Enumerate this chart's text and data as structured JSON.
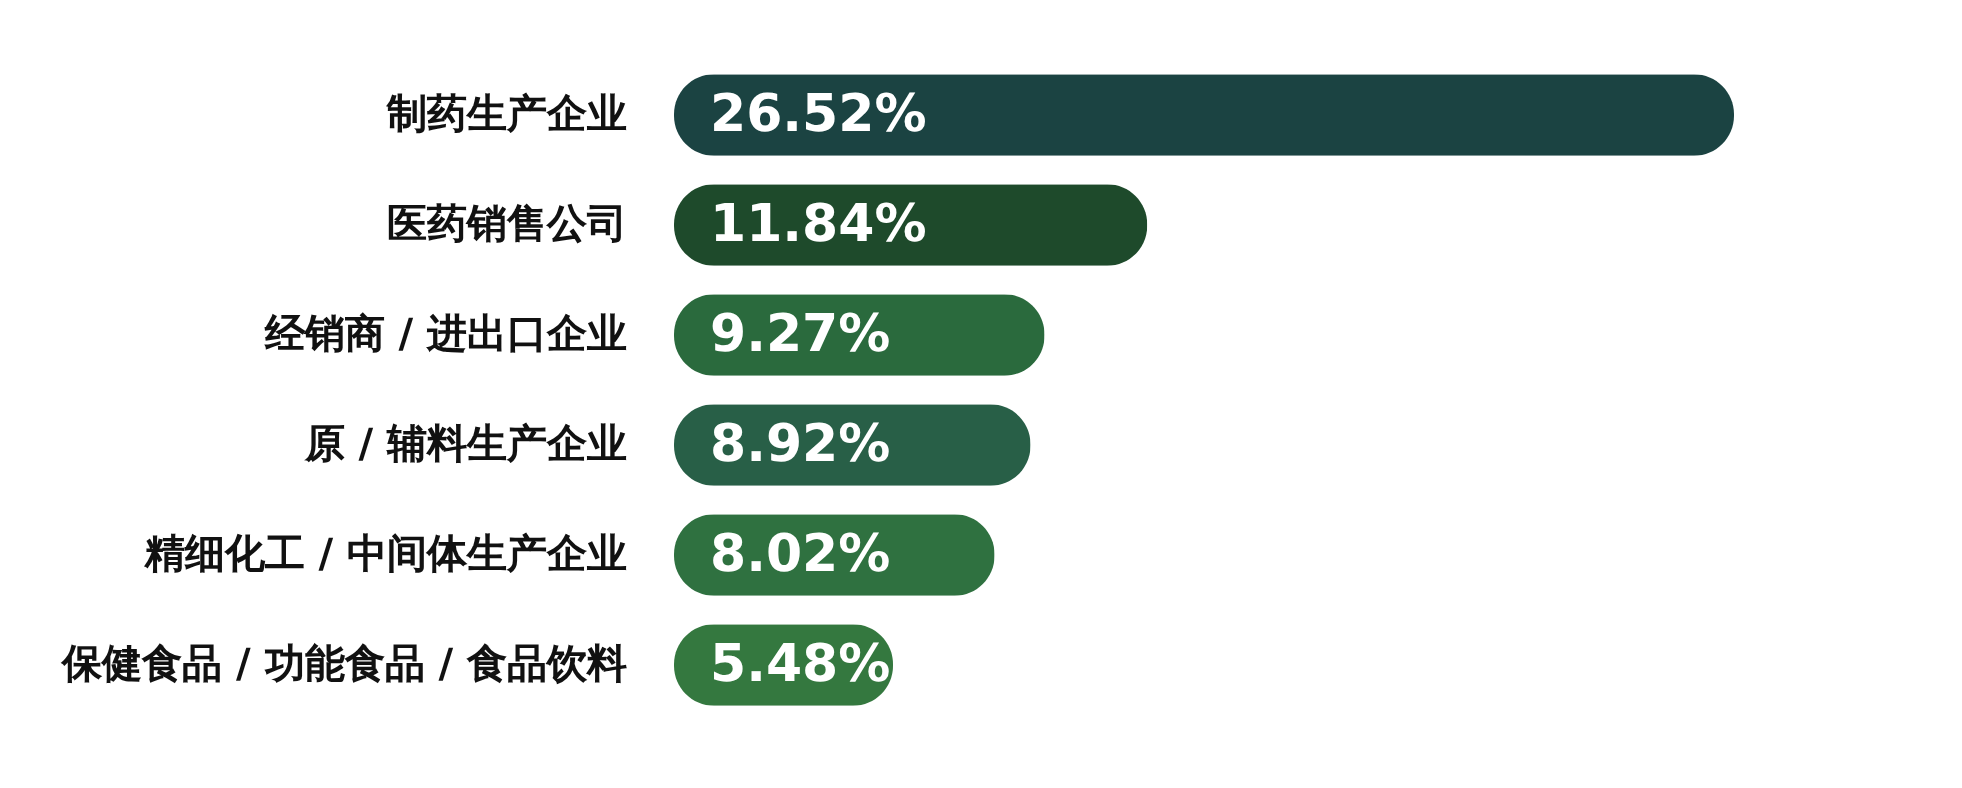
{
  "chart_data": {
    "type": "bar",
    "orientation": "horizontal",
    "categories": [
      "制药生产企业",
      "医药销售公司",
      "经销商 / 进出口企业",
      "原 / 辅料生产企业",
      "精细化工 / 中间体生产企业",
      "保健食品 / 功能食品 / 食品饮料"
    ],
    "values": [
      26.52,
      11.84,
      9.27,
      8.92,
      8.02,
      5.48
    ],
    "value_labels": [
      "26.52%",
      "11.84%",
      "9.27%",
      "8.92%",
      "8.02%",
      "5.48%"
    ],
    "colors": [
      "#1b4342",
      "#1e4a2b",
      "#2a6a3d",
      "#285f47",
      "#2f7140",
      "#34783f"
    ]
  }
}
